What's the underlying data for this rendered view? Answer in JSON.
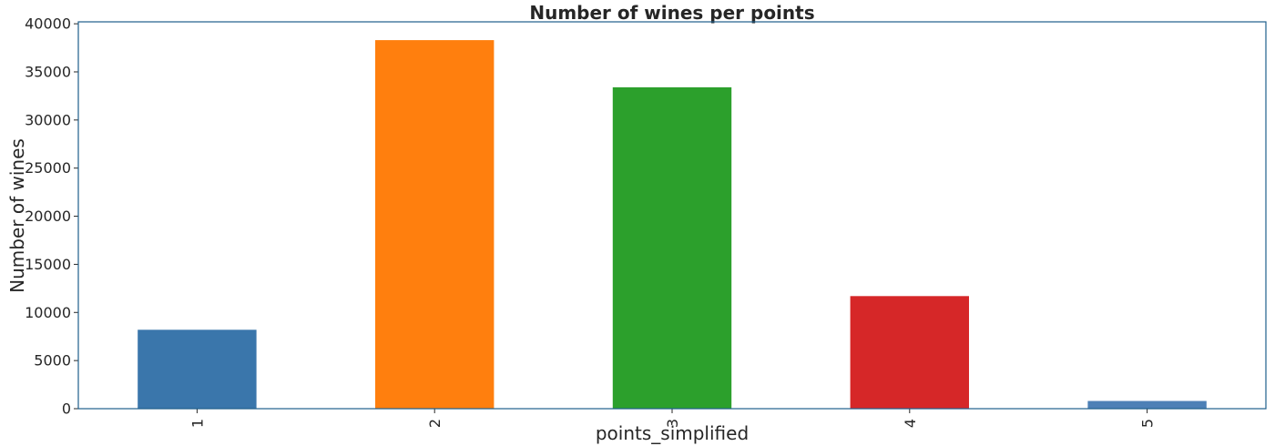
{
  "chart_data": {
    "type": "bar",
    "title": "Number of wines per points",
    "xlabel": "points_simplified",
    "ylabel": "Number of wines",
    "categories": [
      "1",
      "2",
      "3",
      "4",
      "5"
    ],
    "values": [
      8200,
      38300,
      33400,
      11700,
      800
    ],
    "colors": [
      "#3a76ab",
      "#ff7f0e",
      "#2ca02c",
      "#d62728",
      "#4d80b6"
    ],
    "ylim": [
      0,
      40200
    ],
    "yticks": [
      0,
      5000,
      10000,
      15000,
      20000,
      25000,
      30000,
      35000,
      40000
    ],
    "ytick_labels": [
      "0",
      "5000",
      "10000",
      "15000",
      "20000",
      "25000",
      "30000",
      "35000",
      "40000"
    ],
    "xtick_rotation": "vertical",
    "grid": false,
    "legend": "none"
  }
}
